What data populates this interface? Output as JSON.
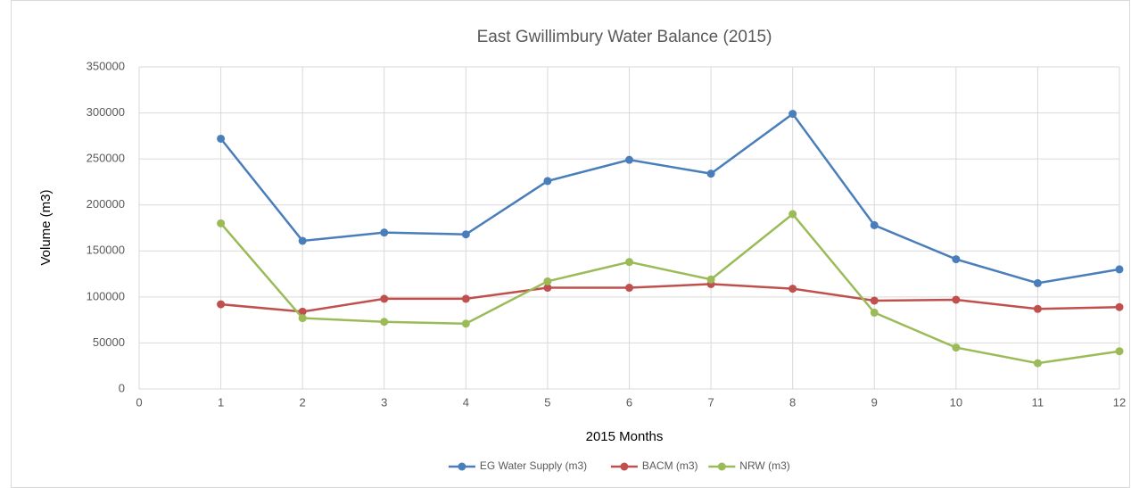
{
  "chart_data": {
    "type": "line",
    "title": "East Gwillimbury Water Balance (2015)",
    "x_label": "2015 Months",
    "y_label": "Volume (m3)",
    "x": [
      1,
      2,
      3,
      4,
      5,
      6,
      7,
      8,
      9,
      10,
      11,
      12
    ],
    "series": [
      {
        "name": "EG Water Supply (m3)",
        "color": "#4a7ebb",
        "values": [
          272000,
          161000,
          170000,
          168000,
          226000,
          249000,
          234000,
          299000,
          178000,
          141000,
          115000,
          130000
        ]
      },
      {
        "name": "BACM (m3)",
        "color": "#c0504d",
        "values": [
          92000,
          84000,
          98000,
          98000,
          110000,
          110000,
          114000,
          109000,
          96000,
          97000,
          87000,
          89000
        ]
      },
      {
        "name": "NRW (m3)",
        "color": "#9bbb59",
        "values": [
          180000,
          77000,
          73000,
          71000,
          117000,
          138000,
          119000,
          190000,
          83000,
          45000,
          28000,
          41000
        ]
      }
    ],
    "xlim": [
      0,
      12
    ],
    "xticks": [
      0,
      1,
      2,
      3,
      4,
      5,
      6,
      7,
      8,
      9,
      10,
      11,
      12
    ],
    "ylim": [
      0,
      350000
    ],
    "yticks": [
      0,
      50000,
      100000,
      150000,
      200000,
      250000,
      300000,
      350000
    ],
    "grid": true,
    "legend": "bottom"
  }
}
